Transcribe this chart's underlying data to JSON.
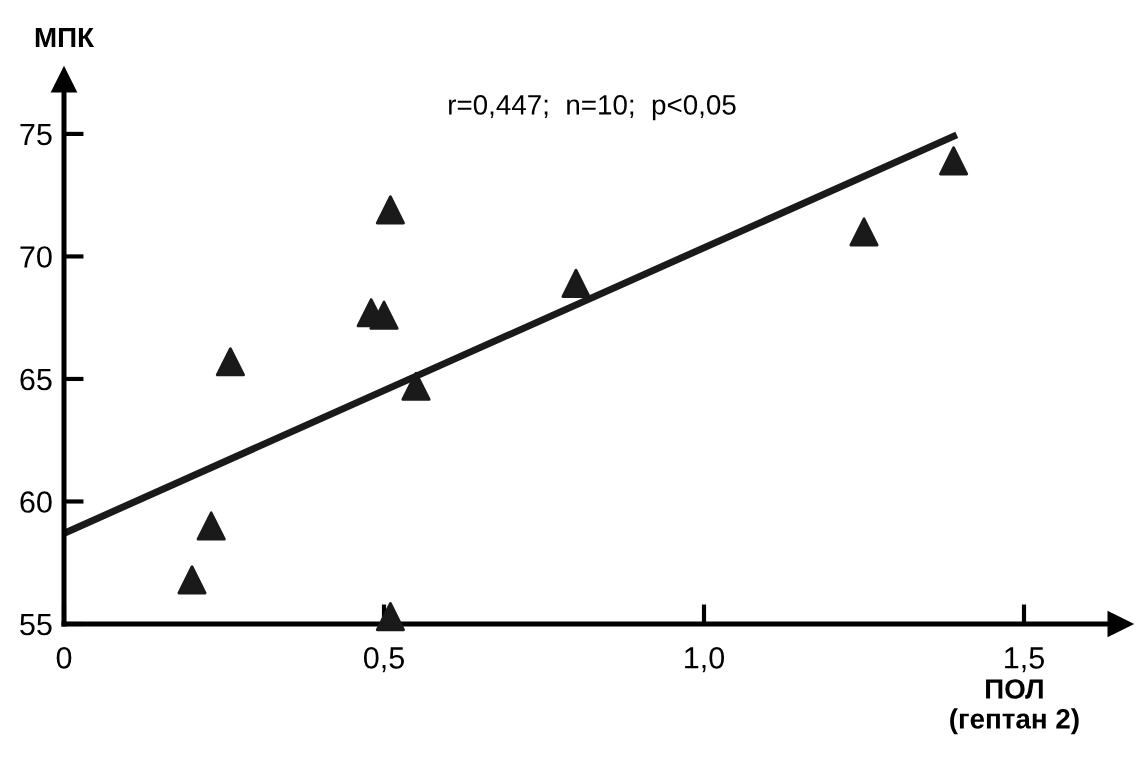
{
  "chart_data": {
    "type": "scatter",
    "xlabel": "ПОЛ\n(гептан 2)",
    "ylabel": "МПК",
    "annotations": [
      "r=0,447;  n=10;  p<0,05"
    ],
    "series": [
      {
        "color": "#1a1a1a",
        "marker": "triangle",
        "x": [
          0.2,
          0.23,
          0.26,
          0.48,
          0.5,
          0.51,
          0.55,
          0.51,
          0.8,
          1.25,
          1.39
        ],
        "values": [
          56.8,
          59.0,
          65.7,
          67.7,
          67.6,
          71.9,
          64.7,
          55.3,
          68.9,
          71.0,
          73.9
        ]
      },
      {
        "type": "line",
        "color": "#1a1a1a",
        "marker": "none",
        "line_style": "solid",
        "x": [
          0,
          1.39
        ],
        "values": [
          58.7,
          74.9
        ]
      }
    ],
    "xlim": [
      0,
      1.65
    ],
    "ylim": [
      55,
      77.2
    ],
    "xticks": [
      {
        "value": 0,
        "label": "0"
      },
      {
        "value": 0.5,
        "label": "0,5"
      },
      {
        "value": 1.0,
        "label": "1,0"
      },
      {
        "value": 1.5,
        "label": "1,5"
      }
    ],
    "yticks": [
      55,
      60,
      65,
      70,
      75
    ],
    "grid": false,
    "legend": false
  }
}
